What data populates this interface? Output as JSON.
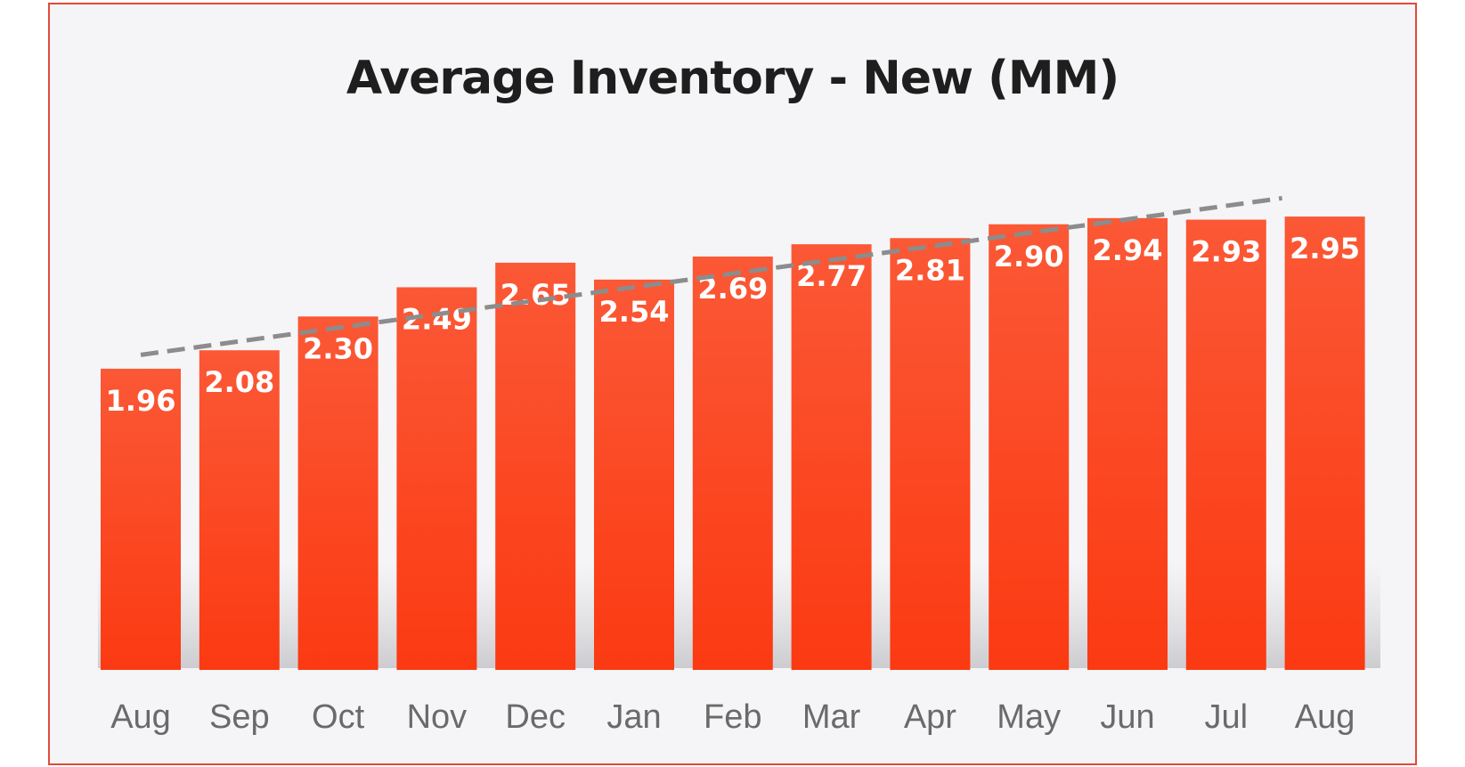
{
  "chart_data": {
    "type": "bar",
    "title": "Average Inventory - New (MM)",
    "xlabel": "",
    "ylabel": "",
    "categories": [
      "Aug",
      "Sep",
      "Oct",
      "Nov",
      "Dec",
      "Jan",
      "Feb",
      "Mar",
      "Apr",
      "May",
      "Jun",
      "Jul",
      "Aug"
    ],
    "values": [
      1.96,
      2.08,
      2.3,
      2.49,
      2.65,
      2.54,
      2.69,
      2.77,
      2.81,
      2.9,
      2.94,
      2.93,
      2.95
    ],
    "value_labels": [
      "1.96",
      "2.08",
      "2.30",
      "2.49",
      "2.65",
      "2.54",
      "2.69",
      "2.77",
      "2.81",
      "2.90",
      "2.94",
      "2.93",
      "2.95"
    ],
    "ylim": [
      0,
      3.2
    ],
    "grid": false,
    "legend": "none",
    "trendline": {
      "style": "dashed",
      "from": 2.05,
      "to": 3.07
    },
    "colors": {
      "bar_top": "#fb5836",
      "bar_bottom": "#fb3a12",
      "trendline": "#8c8c8c",
      "frame_border": "#e24a3a"
    }
  }
}
